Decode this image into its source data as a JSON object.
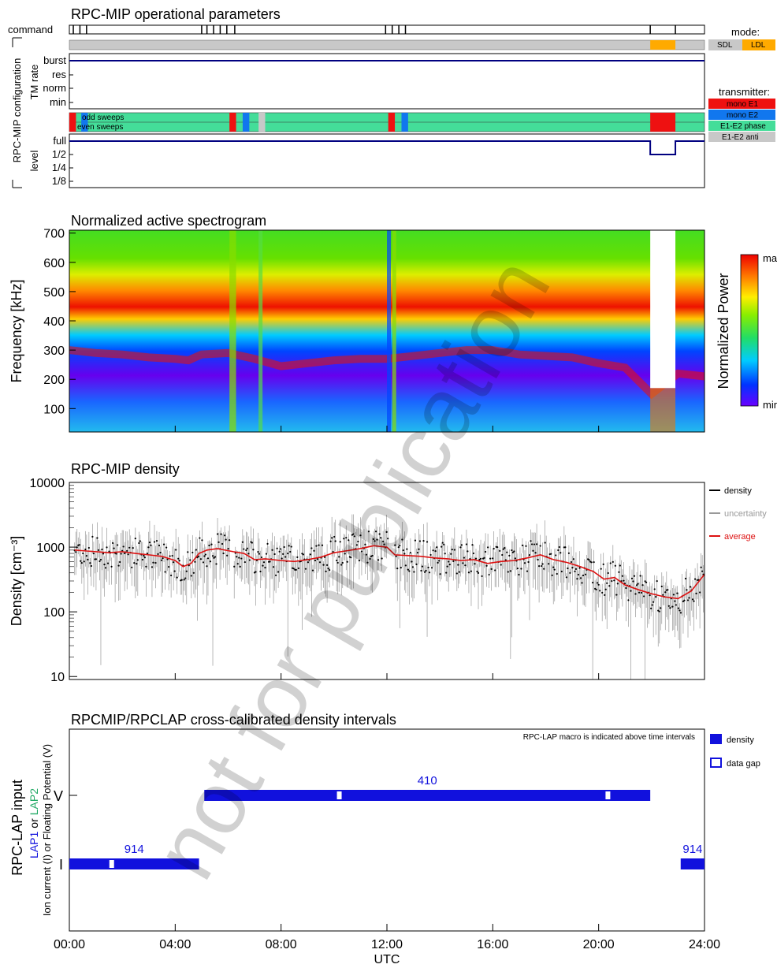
{
  "chart_data": [
    {
      "type": "table",
      "title": "RPC-MIP operational parameters",
      "rows": [
        "command",
        "TM rate",
        "level"
      ],
      "group_label": "RPC-MIP configuration",
      "row_label_tm": "TM rate",
      "row_label_level": "level",
      "row_label_command": "command",
      "tm_levels": [
        "burst",
        "res",
        "norm",
        "min"
      ],
      "level_ticks": [
        "full",
        "1/2",
        "1/4",
        "1/8"
      ],
      "sweep_labels": [
        "odd sweeps",
        "even sweeps"
      ],
      "command_times_h": [
        0.15,
        0.4,
        0.65,
        5.0,
        5.2,
        5.45,
        5.7,
        5.95,
        6.25,
        11.95,
        12.2,
        12.45,
        12.7,
        21.95,
        22.9
      ],
      "mode": {
        "title": "mode:",
        "legend": [
          {
            "name": "SDL",
            "color": "#c8c8c8"
          },
          {
            "name": "LDL",
            "color": "#ffaa00"
          }
        ],
        "ldl_intervals_h": [
          [
            21.95,
            22.9
          ]
        ]
      },
      "transmitter": {
        "title": "transmitter:",
        "legend": [
          {
            "name": "mono E1",
            "color": "#ee1111"
          },
          {
            "name": "mono E2",
            "color": "#1177ee"
          },
          {
            "name": "E1-E2 phase",
            "color": "#44dd99"
          },
          {
            "name": "E1-E2 anti",
            "color": "#c8c8c8"
          }
        ],
        "default": "E1-E2 phase",
        "segments_h": [
          [
            0.0,
            0.25,
            "mono E1"
          ],
          [
            0.45,
            0.7,
            "mono E2"
          ],
          [
            6.05,
            6.3,
            "mono E1"
          ],
          [
            6.55,
            6.8,
            "mono E2"
          ],
          [
            7.15,
            7.4,
            "E1-E2 anti"
          ],
          [
            12.05,
            12.3,
            "mono E1"
          ],
          [
            12.55,
            12.8,
            "mono E2"
          ],
          [
            21.95,
            22.9,
            "mono E1"
          ]
        ]
      },
      "tm_rate": "burst",
      "level_steps_h": [
        [
          0,
          21.95,
          "full"
        ],
        [
          21.95,
          22.1,
          "1/2"
        ],
        [
          22.1,
          22.9,
          "1/2"
        ],
        [
          22.9,
          24,
          "full"
        ]
      ]
    },
    {
      "type": "heatmap",
      "title": "Normalized active spectrogram",
      "ylabel": "Frequency [kHz]",
      "ylim": [
        20,
        710
      ],
      "yticks": [
        100,
        200,
        300,
        400,
        500,
        600,
        700
      ],
      "xlim_h": [
        0,
        24
      ],
      "colorbar": {
        "label": "Normalized Power",
        "max_label": "max",
        "min_label": "min"
      },
      "peak_frequency_khz": [
        [
          0,
          300
        ],
        [
          1,
          290
        ],
        [
          2,
          285
        ],
        [
          3,
          275
        ],
        [
          4,
          270
        ],
        [
          4.5,
          265
        ],
        [
          5,
          285
        ],
        [
          6,
          290
        ],
        [
          7,
          270
        ],
        [
          8,
          245
        ],
        [
          9,
          255
        ],
        [
          10,
          265
        ],
        [
          11,
          270
        ],
        [
          12,
          270
        ],
        [
          13,
          280
        ],
        [
          14,
          290
        ],
        [
          15,
          300
        ],
        [
          16,
          300
        ],
        [
          17,
          285
        ],
        [
          18,
          280
        ],
        [
          19,
          275
        ],
        [
          20,
          255
        ],
        [
          21,
          240
        ],
        [
          22,
          150
        ],
        [
          23,
          220
        ],
        [
          24,
          210
        ]
      ],
      "data_gap_h": [
        [
          21.95,
          22.9
        ]
      ],
      "gap_below_khz": 170
    },
    {
      "type": "scatter",
      "title": "RPC-MIP density",
      "ylabel": "Density [cm⁻³]",
      "yscale": "log",
      "ylim": [
        9,
        10000
      ],
      "yticks": [
        10,
        100,
        1000,
        10000
      ],
      "xlim_h": [
        0,
        24
      ],
      "series": [
        {
          "name": "density",
          "color": "#000000"
        },
        {
          "name": "uncertainty",
          "color": "#999999"
        },
        {
          "name": "average",
          "color": "#dd1111"
        }
      ],
      "average": [
        [
          0.2,
          900
        ],
        [
          0.5,
          880
        ],
        [
          1.0,
          850
        ],
        [
          1.5,
          820
        ],
        [
          2.0,
          850
        ],
        [
          2.5,
          800
        ],
        [
          3.0,
          760
        ],
        [
          3.5,
          720
        ],
        [
          4.0,
          620
        ],
        [
          4.3,
          500
        ],
        [
          4.6,
          560
        ],
        [
          4.9,
          800
        ],
        [
          5.2,
          900
        ],
        [
          5.6,
          950
        ],
        [
          6.0,
          880
        ],
        [
          6.2,
          850
        ],
        [
          6.6,
          800
        ],
        [
          7.0,
          640
        ],
        [
          7.4,
          660
        ],
        [
          8.0,
          620
        ],
        [
          8.5,
          600
        ],
        [
          9.0,
          640
        ],
        [
          9.5,
          700
        ],
        [
          10.0,
          820
        ],
        [
          10.5,
          880
        ],
        [
          11.0,
          950
        ],
        [
          11.5,
          1050
        ],
        [
          12.0,
          1000
        ],
        [
          12.3,
          760
        ],
        [
          12.8,
          740
        ],
        [
          13.3,
          720
        ],
        [
          13.8,
          680
        ],
        [
          14.3,
          660
        ],
        [
          14.8,
          620
        ],
        [
          15.3,
          640
        ],
        [
          15.8,
          560
        ],
        [
          16.3,
          600
        ],
        [
          16.8,
          620
        ],
        [
          17.3,
          680
        ],
        [
          17.8,
          760
        ],
        [
          18.3,
          640
        ],
        [
          18.8,
          580
        ],
        [
          19.3,
          500
        ],
        [
          19.8,
          420
        ],
        [
          20.2,
          320
        ],
        [
          20.6,
          340
        ],
        [
          21.0,
          260
        ],
        [
          21.5,
          220
        ],
        [
          22.0,
          190
        ],
        [
          22.5,
          170
        ],
        [
          23.0,
          160
        ],
        [
          23.5,
          210
        ],
        [
          24.0,
          380
        ]
      ],
      "data_gaps_h": [
        [
          6.05,
          6.2
        ],
        [
          12.05,
          12.3
        ]
      ]
    },
    {
      "type": "bar",
      "title": "RPCMIP/RPCLAP cross-calibrated density intervals",
      "note": "RPC-LAP macro is indicated above time intervals",
      "ylabel_main": "RPC-LAP input",
      "ylabel_lap1": "LAP1",
      "ylabel_or": "or",
      "ylabel_lap2": "LAP2",
      "ylabel_sub": "Ion current (I) or Floating Potential (V)",
      "categories": [
        "V",
        "I"
      ],
      "xlabel": "UTC",
      "xlim_h": [
        0,
        24
      ],
      "xticks": [
        "00:00",
        "04:00",
        "08:00",
        "12:00",
        "16:00",
        "20:00",
        "24:00"
      ],
      "legend": [
        {
          "name": "density",
          "color": "#1111dd"
        },
        {
          "name": "data gap",
          "color": "#1111dd"
        }
      ],
      "intervals": [
        {
          "row": "I",
          "start_h": 0.0,
          "end_h": 4.9,
          "macro": "914",
          "gaps_h": [
            1.6
          ]
        },
        {
          "row": "V",
          "start_h": 5.1,
          "end_h": 21.95,
          "macro": "410",
          "gaps_h": [
            10.2,
            20.35
          ]
        },
        {
          "row": "I",
          "start_h": 23.1,
          "end_h": 24.0,
          "macro": "914",
          "gaps_h": []
        }
      ]
    }
  ],
  "watermark": "not for publication"
}
